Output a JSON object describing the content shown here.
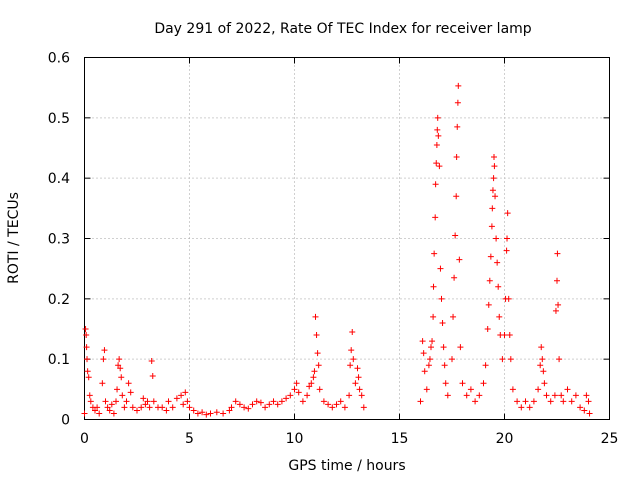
{
  "chart_data": {
    "type": "scatter",
    "title": "Day 291 of 2022, Rate Of TEC Index for receiver lamp",
    "xlabel": "GPS time / hours",
    "ylabel": "ROTI / TECUs",
    "xlim": [
      0,
      25
    ],
    "ylim": [
      0,
      0.6
    ],
    "x_ticks": [
      0,
      5,
      10,
      15,
      20,
      25
    ],
    "x_tick_labels": [
      "0",
      "5",
      "10",
      "15",
      "20",
      "25"
    ],
    "y_ticks": [
      0,
      0.1,
      0.2,
      0.3,
      0.4,
      0.5,
      0.6
    ],
    "y_tick_labels": [
      "0",
      "0.1",
      "0.2",
      "0.3",
      "0.4",
      "0.5",
      "0.6"
    ],
    "grid": true,
    "marker": "plus",
    "series": [
      {
        "name": "ROTI",
        "color": "#ff0000",
        "points": [
          [
            0.0,
            0.01
          ],
          [
            0.05,
            0.15
          ],
          [
            0.08,
            0.14
          ],
          [
            0.1,
            0.12
          ],
          [
            0.12,
            0.1
          ],
          [
            0.15,
            0.08
          ],
          [
            0.2,
            0.07
          ],
          [
            0.25,
            0.04
          ],
          [
            0.3,
            0.03
          ],
          [
            0.4,
            0.02
          ],
          [
            0.5,
            0.015
          ],
          [
            0.6,
            0.02
          ],
          [
            0.7,
            0.01
          ],
          [
            0.85,
            0.06
          ],
          [
            0.9,
            0.1
          ],
          [
            0.95,
            0.115
          ],
          [
            1.0,
            0.03
          ],
          [
            1.1,
            0.02
          ],
          [
            1.2,
            0.015
          ],
          [
            1.3,
            0.025
          ],
          [
            1.4,
            0.01
          ],
          [
            1.5,
            0.03
          ],
          [
            1.55,
            0.05
          ],
          [
            1.6,
            0.09
          ],
          [
            1.65,
            0.1
          ],
          [
            1.7,
            0.085
          ],
          [
            1.75,
            0.07
          ],
          [
            1.8,
            0.04
          ],
          [
            1.9,
            0.02
          ],
          [
            2.0,
            0.03
          ],
          [
            2.1,
            0.06
          ],
          [
            2.2,
            0.045
          ],
          [
            2.3,
            0.02
          ],
          [
            2.5,
            0.015
          ],
          [
            2.7,
            0.02
          ],
          [
            2.8,
            0.035
          ],
          [
            2.9,
            0.025
          ],
          [
            3.0,
            0.03
          ],
          [
            3.1,
            0.02
          ],
          [
            3.2,
            0.097
          ],
          [
            3.25,
            0.072
          ],
          [
            3.3,
            0.03
          ],
          [
            3.5,
            0.02
          ],
          [
            3.7,
            0.02
          ],
          [
            3.9,
            0.015
          ],
          [
            4.0,
            0.03
          ],
          [
            4.2,
            0.02
          ],
          [
            4.4,
            0.035
          ],
          [
            4.6,
            0.04
          ],
          [
            4.7,
            0.025
          ],
          [
            4.8,
            0.045
          ],
          [
            4.9,
            0.03
          ],
          [
            5.0,
            0.02
          ],
          [
            5.2,
            0.015
          ],
          [
            5.4,
            0.01
          ],
          [
            5.6,
            0.012
          ],
          [
            5.8,
            0.008
          ],
          [
            6.0,
            0.01
          ],
          [
            6.3,
            0.012
          ],
          [
            6.6,
            0.01
          ],
          [
            6.9,
            0.015
          ],
          [
            7.0,
            0.02
          ],
          [
            7.2,
            0.03
          ],
          [
            7.4,
            0.025
          ],
          [
            7.6,
            0.02
          ],
          [
            7.8,
            0.018
          ],
          [
            8.0,
            0.025
          ],
          [
            8.2,
            0.03
          ],
          [
            8.4,
            0.028
          ],
          [
            8.6,
            0.02
          ],
          [
            8.8,
            0.025
          ],
          [
            9.0,
            0.03
          ],
          [
            9.2,
            0.025
          ],
          [
            9.4,
            0.03
          ],
          [
            9.6,
            0.035
          ],
          [
            9.8,
            0.04
          ],
          [
            10.0,
            0.05
          ],
          [
            10.1,
            0.06
          ],
          [
            10.2,
            0.045
          ],
          [
            10.4,
            0.03
          ],
          [
            10.6,
            0.04
          ],
          [
            10.7,
            0.055
          ],
          [
            10.8,
            0.06
          ],
          [
            10.9,
            0.07
          ],
          [
            10.95,
            0.08
          ],
          [
            11.0,
            0.17
          ],
          [
            11.05,
            0.14
          ],
          [
            11.1,
            0.11
          ],
          [
            11.15,
            0.09
          ],
          [
            11.2,
            0.05
          ],
          [
            11.4,
            0.03
          ],
          [
            11.6,
            0.025
          ],
          [
            11.8,
            0.02
          ],
          [
            12.0,
            0.025
          ],
          [
            12.2,
            0.03
          ],
          [
            12.4,
            0.02
          ],
          [
            12.6,
            0.04
          ],
          [
            12.65,
            0.09
          ],
          [
            12.7,
            0.115
          ],
          [
            12.75,
            0.145
          ],
          [
            12.8,
            0.1
          ],
          [
            12.9,
            0.06
          ],
          [
            13.0,
            0.085
          ],
          [
            13.05,
            0.07
          ],
          [
            13.1,
            0.05
          ],
          [
            13.2,
            0.04
          ],
          [
            13.3,
            0.02
          ],
          [
            16.0,
            0.03
          ],
          [
            16.1,
            0.13
          ],
          [
            16.15,
            0.11
          ],
          [
            16.2,
            0.08
          ],
          [
            16.3,
            0.05
          ],
          [
            16.4,
            0.09
          ],
          [
            16.45,
            0.1
          ],
          [
            16.5,
            0.12
          ],
          [
            16.55,
            0.13
          ],
          [
            16.6,
            0.17
          ],
          [
            16.62,
            0.22
          ],
          [
            16.65,
            0.275
          ],
          [
            16.7,
            0.335
          ],
          [
            16.72,
            0.39
          ],
          [
            16.75,
            0.425
          ],
          [
            16.78,
            0.455
          ],
          [
            16.8,
            0.48
          ],
          [
            16.82,
            0.5
          ],
          [
            16.85,
            0.47
          ],
          [
            16.9,
            0.42
          ],
          [
            16.95,
            0.25
          ],
          [
            17.0,
            0.2
          ],
          [
            17.05,
            0.16
          ],
          [
            17.1,
            0.12
          ],
          [
            17.15,
            0.09
          ],
          [
            17.2,
            0.06
          ],
          [
            17.3,
            0.04
          ],
          [
            17.5,
            0.1
          ],
          [
            17.55,
            0.17
          ],
          [
            17.6,
            0.235
          ],
          [
            17.65,
            0.305
          ],
          [
            17.7,
            0.37
          ],
          [
            17.72,
            0.435
          ],
          [
            17.75,
            0.485
          ],
          [
            17.78,
            0.525
          ],
          [
            17.8,
            0.553
          ],
          [
            17.85,
            0.265
          ],
          [
            17.9,
            0.12
          ],
          [
            18.0,
            0.06
          ],
          [
            18.2,
            0.04
          ],
          [
            18.4,
            0.05
          ],
          [
            18.6,
            0.03
          ],
          [
            18.8,
            0.04
          ],
          [
            19.0,
            0.06
          ],
          [
            19.1,
            0.09
          ],
          [
            19.2,
            0.15
          ],
          [
            19.25,
            0.19
          ],
          [
            19.3,
            0.23
          ],
          [
            19.35,
            0.27
          ],
          [
            19.4,
            0.32
          ],
          [
            19.42,
            0.35
          ],
          [
            19.45,
            0.38
          ],
          [
            19.48,
            0.4
          ],
          [
            19.5,
            0.435
          ],
          [
            19.52,
            0.42
          ],
          [
            19.55,
            0.37
          ],
          [
            19.6,
            0.3
          ],
          [
            19.65,
            0.26
          ],
          [
            19.7,
            0.22
          ],
          [
            19.75,
            0.17
          ],
          [
            19.8,
            0.14
          ],
          [
            19.9,
            0.1
          ],
          [
            20.0,
            0.14
          ],
          [
            20.05,
            0.2
          ],
          [
            20.1,
            0.28
          ],
          [
            20.12,
            0.3
          ],
          [
            20.15,
            0.342
          ],
          [
            20.2,
            0.2
          ],
          [
            20.25,
            0.14
          ],
          [
            20.3,
            0.1
          ],
          [
            20.4,
            0.05
          ],
          [
            20.6,
            0.03
          ],
          [
            20.8,
            0.02
          ],
          [
            21.0,
            0.03
          ],
          [
            21.2,
            0.02
          ],
          [
            21.4,
            0.03
          ],
          [
            21.6,
            0.05
          ],
          [
            21.7,
            0.09
          ],
          [
            21.75,
            0.12
          ],
          [
            21.8,
            0.1
          ],
          [
            21.85,
            0.08
          ],
          [
            21.9,
            0.06
          ],
          [
            22.0,
            0.04
          ],
          [
            22.2,
            0.03
          ],
          [
            22.4,
            0.04
          ],
          [
            22.45,
            0.18
          ],
          [
            22.5,
            0.23
          ],
          [
            22.52,
            0.275
          ],
          [
            22.55,
            0.19
          ],
          [
            22.6,
            0.1
          ],
          [
            22.7,
            0.04
          ],
          [
            22.8,
            0.03
          ],
          [
            23.0,
            0.05
          ],
          [
            23.2,
            0.03
          ],
          [
            23.4,
            0.04
          ],
          [
            23.6,
            0.02
          ],
          [
            23.8,
            0.015
          ],
          [
            23.9,
            0.04
          ],
          [
            24.0,
            0.03
          ],
          [
            24.05,
            0.01
          ]
        ]
      }
    ]
  }
}
